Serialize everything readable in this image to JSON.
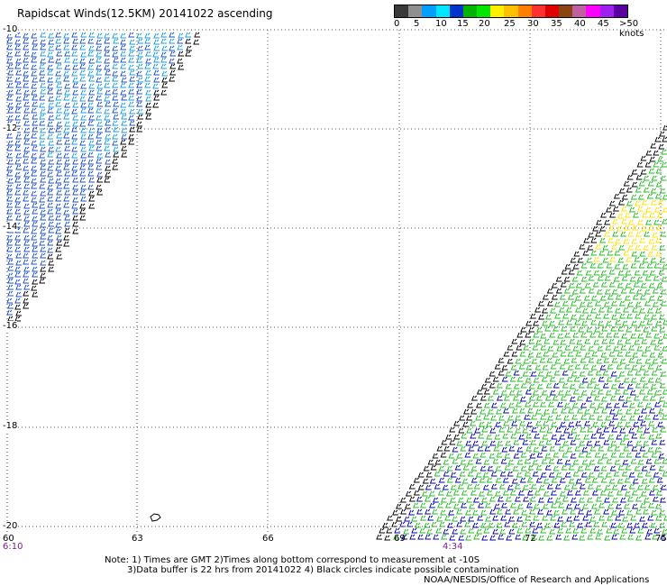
{
  "title": "Rapidscat Winds(12.5KM) 20141022 ascending",
  "legend": {
    "labels": [
      "0",
      "5",
      "10",
      "15",
      "20",
      "25",
      "30",
      "35",
      "40",
      "45",
      ">50 knots"
    ],
    "colors": [
      "#3a3a3a",
      "#8f8f8f",
      "#00a0ff",
      "#00e6ff",
      "#0033cc",
      "#00b400",
      "#00e600",
      "#ffee00",
      "#ffc000",
      "#ff7f00",
      "#ff3030",
      "#e00000",
      "#8b4513",
      "#c060a0",
      "#ff00ff",
      "#a020f0",
      "#5a00a0"
    ]
  },
  "map": {
    "lat_labels": [
      "-10",
      "-12",
      "-14",
      "-16",
      "-18",
      "-20"
    ],
    "lon_labels": [
      "60",
      "63",
      "66",
      "69",
      "72",
      "75"
    ],
    "time_labels": [
      "6:10",
      "4:34"
    ],
    "colors": {
      "calm": "#1e50c8",
      "light": "#1a9cdc",
      "moderate": "#22bb22",
      "strong": "#ffe000",
      "dark_blue": "#0000aa",
      "contamination": "#000000",
      "grid": "#555555"
    }
  },
  "notes": {
    "line1": "Note: 1) Times are GMT 2)Times along bottom correspond to measurement at -10S",
    "line2": "3)Data buffer is 22 hrs from 20141022 4) Black circles indicate possible contamination",
    "line3": "NOAA/NESDIS/Office of Research and Applications"
  }
}
